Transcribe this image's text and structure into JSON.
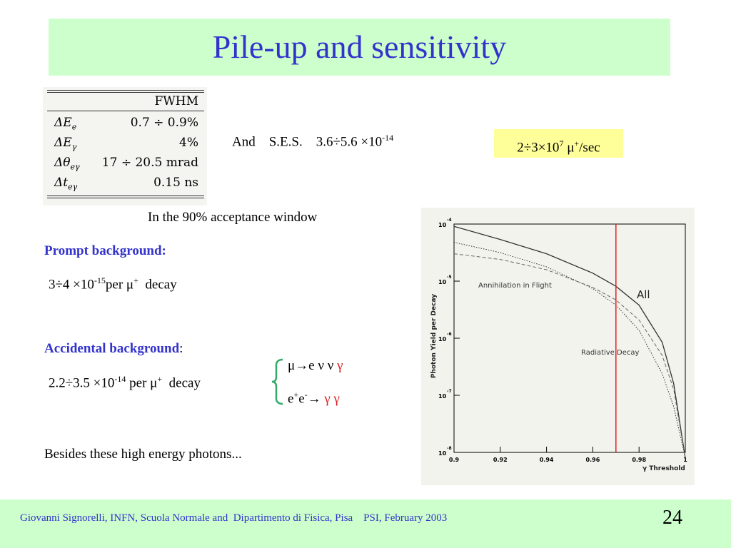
{
  "title": "Pile-up and sensitivity",
  "table": {
    "header": "FWHM",
    "rows": [
      {
        "label": "ΔE",
        "sub": "e",
        "value": "0.7 ÷ 0.9%"
      },
      {
        "label": "ΔE",
        "sub": "γ",
        "value": "4%"
      },
      {
        "label": "Δθ",
        "sub": "eγ",
        "value": "17 ÷ 20.5 mrad"
      },
      {
        "label": "Δt",
        "sub": "eγ",
        "value": "0.15 ns"
      }
    ]
  },
  "ses": {
    "and": "And",
    "label": "S.E.S.",
    "value": "3.6÷5.6 ×10",
    "exp": "-14"
  },
  "rate": {
    "base": "2÷3×10",
    "exp": "7",
    "unit": " μ",
    "unit_sup": "+",
    "suffix": "/sec"
  },
  "acceptance": "In the 90% acceptance window",
  "prompt": {
    "heading": "Prompt background:",
    "value": "3÷4 ×10",
    "exp": "-15",
    "per": "per μ",
    "per_sup": "+",
    "decay": "  decay"
  },
  "accidental": {
    "heading": "Accidental background",
    "colon": ":",
    "value": "2.2÷3.5 ×10",
    "exp": "-14",
    "per": " per μ",
    "per_sup": "+",
    "decay": "  decay",
    "brace_color": "#33aa66",
    "reactions": [
      {
        "text": "μ→e ν ν ",
        "gamma": "γ"
      },
      {
        "text1": "e",
        "sup1": "+",
        "text2": "e",
        "sup2": "-",
        "arrow": "→ ",
        "gamma": "γ γ"
      }
    ]
  },
  "besides": "Besides these high energy photons...",
  "chart_data": {
    "type": "line",
    "xlabel": "γ Threshold",
    "ylabel": "Photon Yield per Decay",
    "xlim": [
      0.9,
      1.0
    ],
    "ylim_log": [
      -8,
      -4
    ],
    "x_ticks": [
      "0.9",
      "0.92",
      "0.94",
      "0.96",
      "0.98",
      "1"
    ],
    "y_ticks": [
      {
        "base": "10",
        "exp": "-4"
      },
      {
        "base": "10",
        "exp": "-5"
      },
      {
        "base": "10",
        "exp": "-6"
      },
      {
        "base": "10",
        "exp": "-7"
      },
      {
        "base": "10",
        "exp": "-8"
      }
    ],
    "threshold_line": {
      "x": 0.97,
      "color": "#dd2222"
    },
    "annotations": [
      "Annihilation in Flight",
      "All",
      "Radiative Decay"
    ],
    "series": [
      {
        "name": "All",
        "style": "solid",
        "x": [
          0.9,
          0.92,
          0.94,
          0.96,
          0.97,
          0.98,
          0.99,
          0.995,
          1.0
        ],
        "y": [
          -4.04,
          -4.27,
          -4.52,
          -4.86,
          -5.09,
          -5.42,
          -6.07,
          -6.8,
          -8.1
        ]
      },
      {
        "name": "Radiative Decay",
        "style": "dotted",
        "x": [
          0.9,
          0.92,
          0.94,
          0.96,
          0.97,
          0.98,
          0.99,
          0.995,
          1.0
        ],
        "y": [
          -4.32,
          -4.5,
          -4.75,
          -5.13,
          -5.42,
          -5.86,
          -6.62,
          -7.2,
          -8.1
        ]
      },
      {
        "name": "Annihilation in Flight",
        "style": "dashed",
        "x": [
          0.9,
          0.92,
          0.94,
          0.96,
          0.97,
          0.98,
          0.99,
          0.995,
          1.0
        ],
        "y": [
          -4.52,
          -4.62,
          -4.8,
          -5.11,
          -5.33,
          -5.68,
          -6.3,
          -6.9,
          -8.1
        ]
      }
    ]
  },
  "footer": "Giovanni Signorelli, INFN, Scuola Normale and  Dipartimento di Fisica, Pisa    PSI, February 2003",
  "page_number": "24"
}
